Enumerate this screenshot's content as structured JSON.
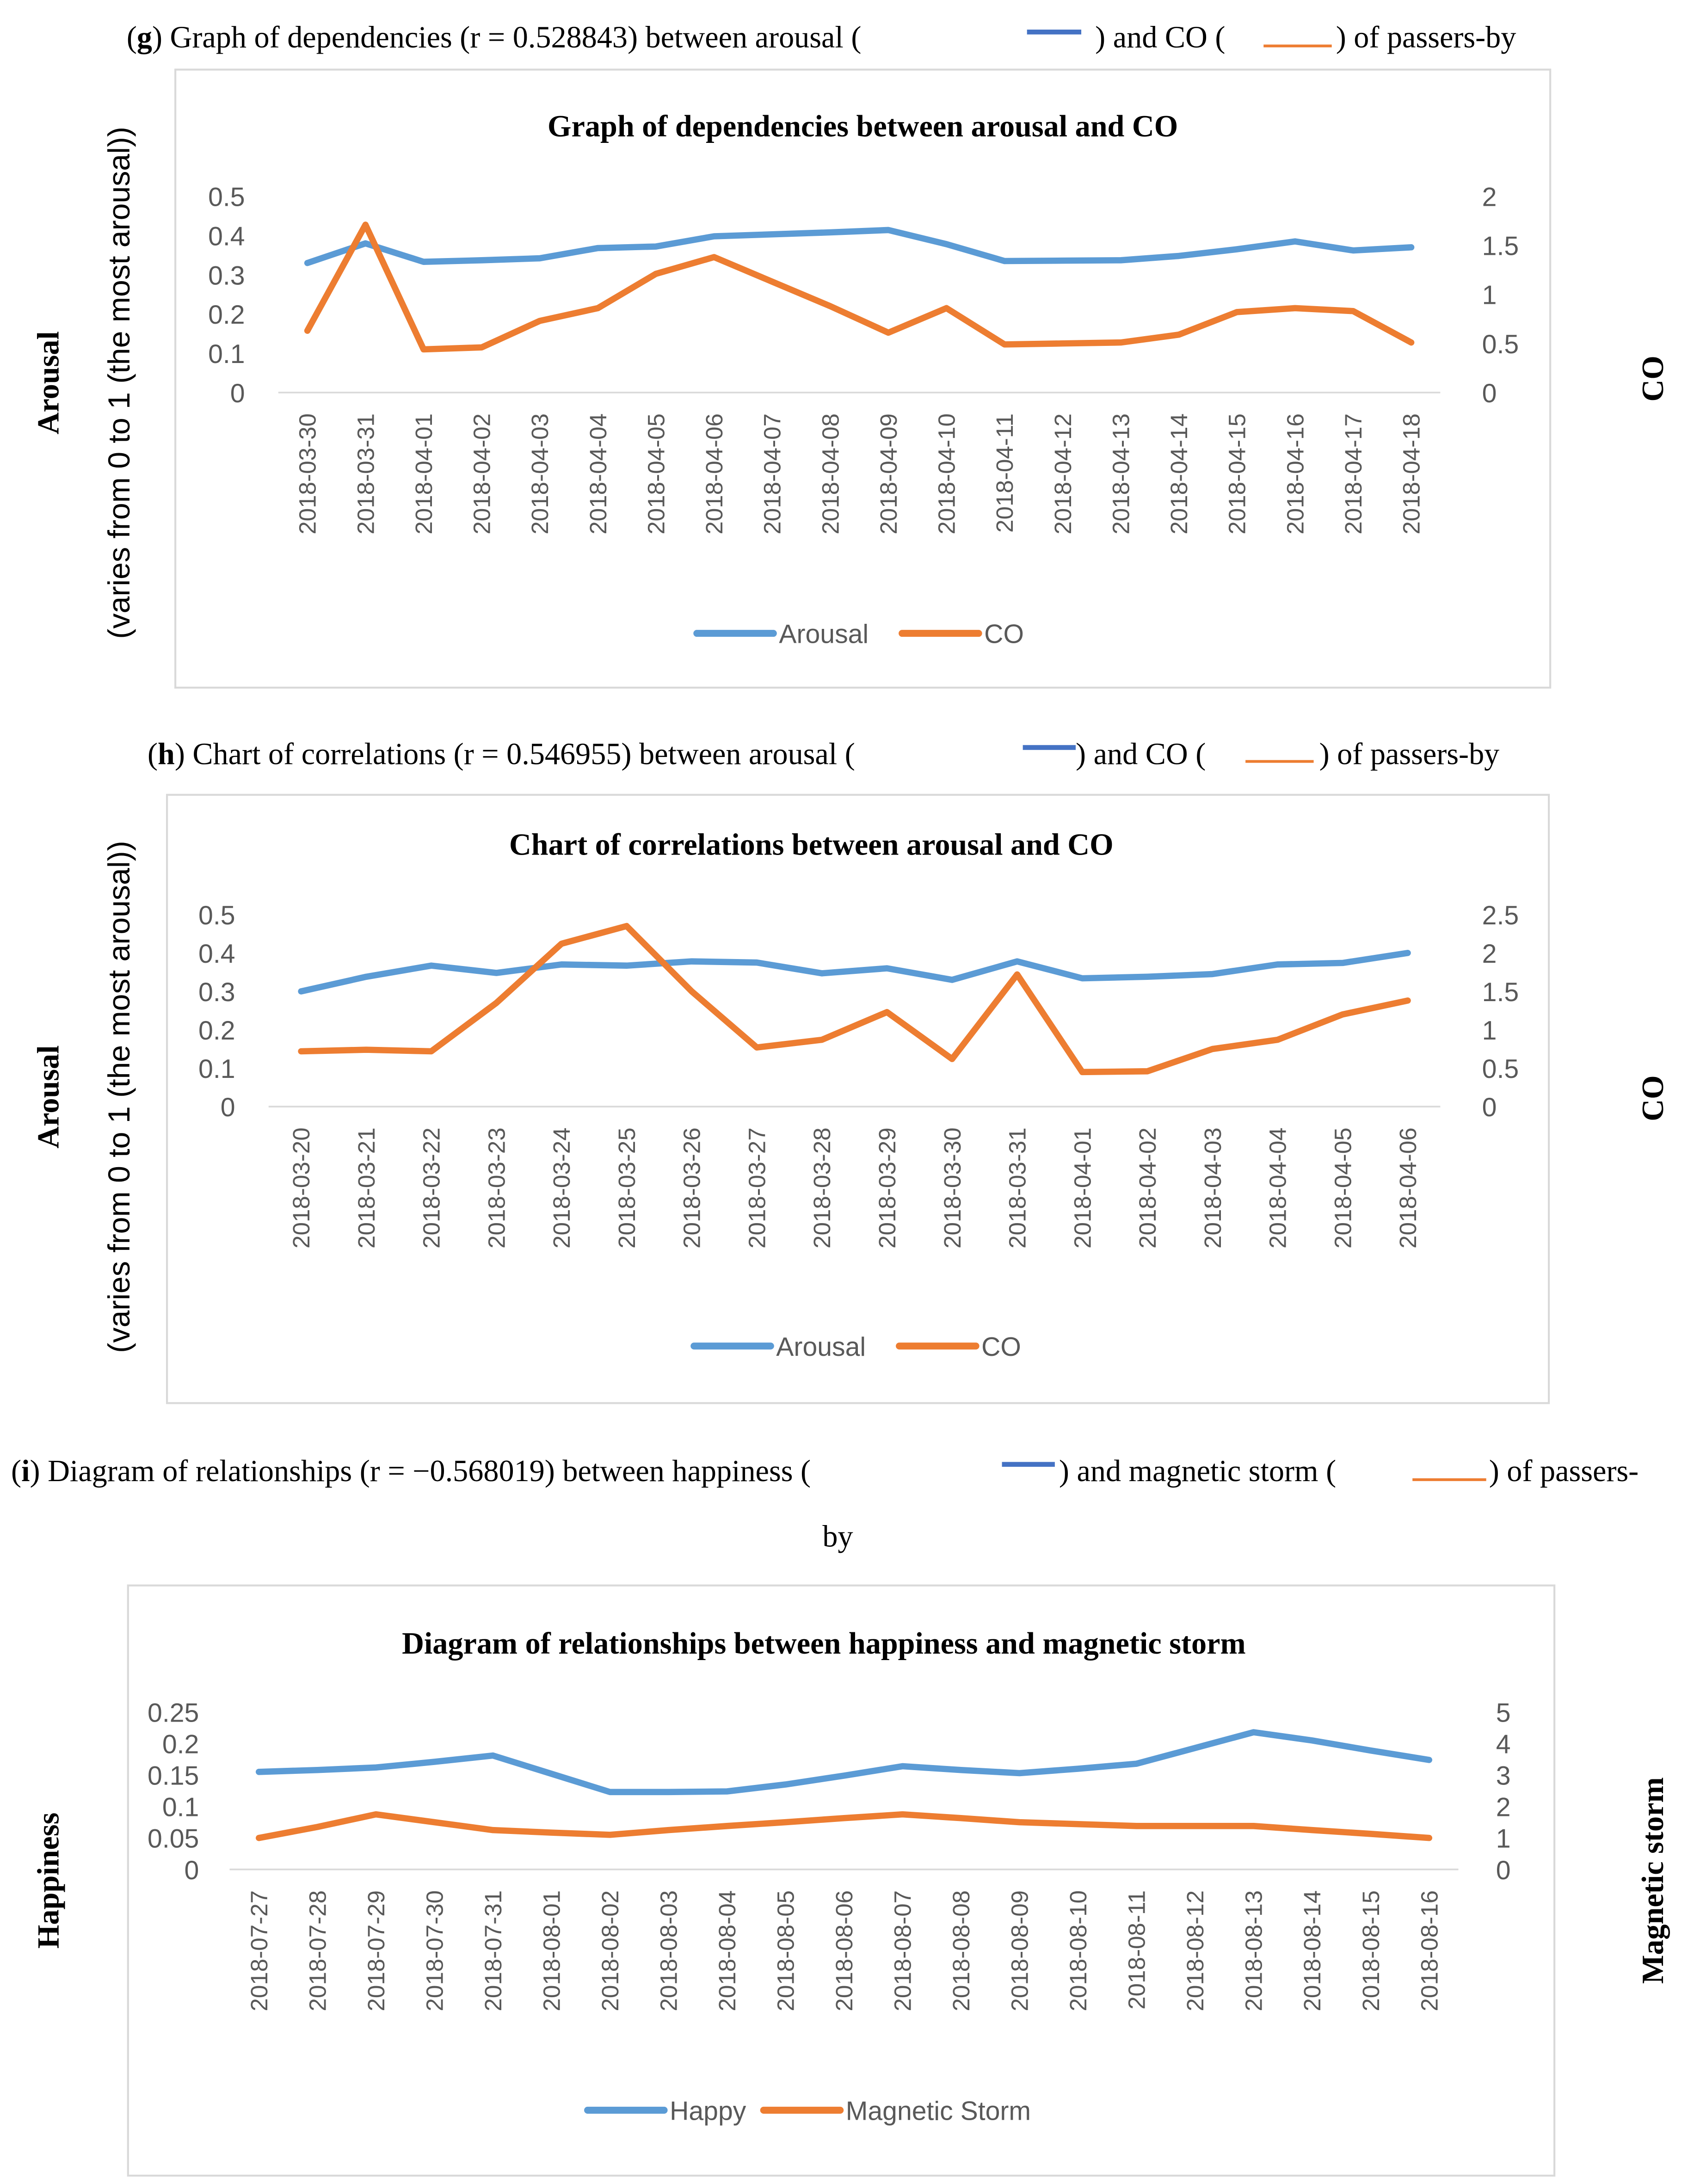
{
  "figures": [
    {
      "caption": {
        "letter": "g",
        "pre": ") Graph of dependencies (r = 0.528843) between arousal (",
        "mid": ") and CO (",
        "post": ") of passers-by",
        "accent_a": "#4472c4",
        "accent_b": "#ed7d31"
      },
      "y_label_left_bold": "Arousal",
      "y_label_left_sub": "(varies from 0 to 1 (the most arousal))",
      "y_label_right": "CO"
    },
    {
      "caption": {
        "letter": "h",
        "pre": ") Chart of correlations (r = 0.546955) between arousal (",
        "mid": ") and CO (",
        "post": ") of passers-by",
        "accent_a": "#4472c4",
        "accent_b": "#ed7d31"
      },
      "y_label_left_bold": "Arousal",
      "y_label_left_sub": "(varies from 0 to 1 (the most arousal))",
      "y_label_right": "CO"
    },
    {
      "caption": {
        "letter": "i",
        "pre": ") Diagram of relationships (r = −0.568019) between happiness (",
        "mid": ") and magnetic storm (",
        "post": ") of passers-",
        "post2": "by",
        "accent_a": "#4472c4",
        "accent_b": "#ed7d31"
      },
      "y_label_left_bold": "Happiness",
      "y_label_right": "Magnetic storm"
    }
  ],
  "chart_data": [
    {
      "type": "line",
      "title": "Graph of dependencies between arousal and CO",
      "categories": [
        "2018-03-30",
        "2018-03-31",
        "2018-04-01",
        "2018-04-02",
        "2018-04-03",
        "2018-04-04",
        "2018-04-05",
        "2018-04-06",
        "2018-04-07",
        "2018-04-08",
        "2018-04-09",
        "2018-04-10",
        "2018-04-11",
        "2018-04-12",
        "2018-04-13",
        "2018-04-14",
        "2018-04-15",
        "2018-04-16",
        "2018-04-17",
        "2018-04-18"
      ],
      "ylim": [
        0,
        0.5
      ],
      "y_ticks": [
        "0",
        "0.1",
        "0.2",
        "0.3",
        "0.4",
        "0.5"
      ],
      "y2lim": [
        0,
        2
      ],
      "y2_ticks": [
        "0",
        "0.5",
        "1",
        "1.5",
        "2"
      ],
      "legend_position": "bottom",
      "grid": false,
      "series": [
        {
          "name": "Arousal",
          "axis": "left",
          "color": "#5b9bd5",
          "values": [
            0.33,
            0.38,
            0.333,
            0.337,
            0.342,
            0.368,
            0.372,
            0.398,
            0.403,
            0.408,
            0.414,
            0.378,
            0.335,
            0.336,
            0.337,
            0.348,
            0.365,
            0.385,
            0.362,
            0.37
          ]
        },
        {
          "name": "CO",
          "axis": "right",
          "color": "#ed7d31",
          "values": [
            0.63,
            1.71,
            0.44,
            0.46,
            0.73,
            0.86,
            1.21,
            1.38,
            1.13,
            0.88,
            0.61,
            0.86,
            0.49,
            0.5,
            0.51,
            0.59,
            0.82,
            0.86,
            0.83,
            0.51
          ]
        }
      ]
    },
    {
      "type": "line",
      "title": "Chart of correlations between arousal and CO",
      "categories": [
        "2018-03-20",
        "2018-03-21",
        "2018-03-22",
        "2018-03-23",
        "2018-03-24",
        "2018-03-25",
        "2018-03-26",
        "2018-03-27",
        "2018-03-28",
        "2018-03-29",
        "2018-03-30",
        "2018-03-31",
        "2018-04-01",
        "2018-04-02",
        "2018-04-03",
        "2018-04-04",
        "2018-04-05",
        "2018-04-06"
      ],
      "ylim": [
        0,
        0.5
      ],
      "y_ticks": [
        "0",
        "0.1",
        "0.2",
        "0.3",
        "0.4",
        "0.5"
      ],
      "y2lim": [
        0,
        2.5
      ],
      "y2_ticks": [
        "0",
        "0.5",
        "1",
        "1.5",
        "2",
        "2.5"
      ],
      "legend_position": "bottom",
      "grid": false,
      "series": [
        {
          "name": "Arousal",
          "axis": "left",
          "color": "#5b9bd5",
          "values": [
            0.3,
            0.338,
            0.367,
            0.348,
            0.37,
            0.367,
            0.378,
            0.375,
            0.347,
            0.36,
            0.33,
            0.378,
            0.334,
            0.338,
            0.345,
            0.37,
            0.374,
            0.4
          ]
        },
        {
          "name": "CO",
          "axis": "right",
          "color": "#ed7d31",
          "values": [
            0.72,
            0.74,
            0.72,
            1.35,
            2.12,
            2.35,
            1.5,
            0.77,
            0.87,
            1.23,
            0.62,
            1.72,
            0.45,
            0.46,
            0.75,
            0.87,
            1.2,
            1.38
          ]
        }
      ]
    },
    {
      "type": "line",
      "title": "Diagram of relationships between happiness and magnetic storm",
      "categories": [
        "2018-07-27",
        "2018-07-28",
        "2018-07-29",
        "2018-07-30",
        "2018-07-31",
        "2018-08-01",
        "2018-08-02",
        "2018-08-03",
        "2018-08-04",
        "2018-08-05",
        "2018-08-06",
        "2018-08-07",
        "2018-08-08",
        "2018-08-09",
        "2018-08-10",
        "2018-08-11",
        "2018-08-12",
        "2018-08-13",
        "2018-08-14",
        "2018-08-15",
        "2018-08-16"
      ],
      "ylim": [
        0,
        0.25
      ],
      "y_ticks": [
        "0",
        "0.05",
        "0.1",
        "0.15",
        "0.2",
        "0.25"
      ],
      "y2lim": [
        0,
        5
      ],
      "y2_ticks": [
        "0",
        "1",
        "2",
        "3",
        "4",
        "5"
      ],
      "legend_position": "bottom",
      "grid": false,
      "series": [
        {
          "name": "Happy",
          "axis": "left",
          "color": "#5b9bd5",
          "values": [
            0.155,
            0.158,
            0.162,
            0.171,
            0.181,
            0.152,
            0.123,
            0.123,
            0.124,
            0.135,
            0.149,
            0.164,
            0.158,
            0.153,
            0.16,
            0.168,
            0.193,
            0.218,
            0.205,
            0.189,
            0.174
          ]
        },
        {
          "name": "Magnetic Storm",
          "axis": "right",
          "color": "#ed7d31",
          "values": [
            1.0,
            1.35,
            1.75,
            1.5,
            1.25,
            1.17,
            1.1,
            1.25,
            1.38,
            1.5,
            1.63,
            1.75,
            1.63,
            1.5,
            1.44,
            1.38,
            1.38,
            1.38,
            1.25,
            1.13,
            1.0
          ]
        }
      ]
    }
  ]
}
